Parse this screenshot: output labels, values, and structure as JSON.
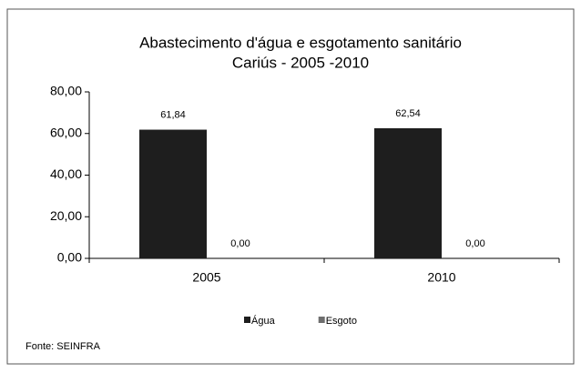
{
  "chart_data": {
    "type": "bar",
    "title": "Abastecimento d'água e esgotamento sanitário",
    "subtitle": "Cariús - 2005 -2010",
    "categories": [
      "2005",
      "2010"
    ],
    "series": [
      {
        "name": "Água",
        "color": "#1e1e1e",
        "values": [
          61.84,
          62.54
        ],
        "value_labels": [
          "61,84",
          "62,54"
        ]
      },
      {
        "name": "Esgoto",
        "color": "#6e6e6e",
        "values": [
          0,
          0
        ],
        "value_labels": [
          "0,00",
          "0,00"
        ]
      }
    ],
    "ylim": [
      0,
      80
    ],
    "yticks": [
      {
        "value": 0,
        "label": "0,00"
      },
      {
        "value": 20,
        "label": "20,00"
      },
      {
        "value": 40,
        "label": "40,00"
      },
      {
        "value": 60,
        "label": "60,00"
      },
      {
        "value": 80,
        "label": "80,00"
      }
    ],
    "legend": "bottom",
    "source": "Fonte: SEINFRA"
  }
}
